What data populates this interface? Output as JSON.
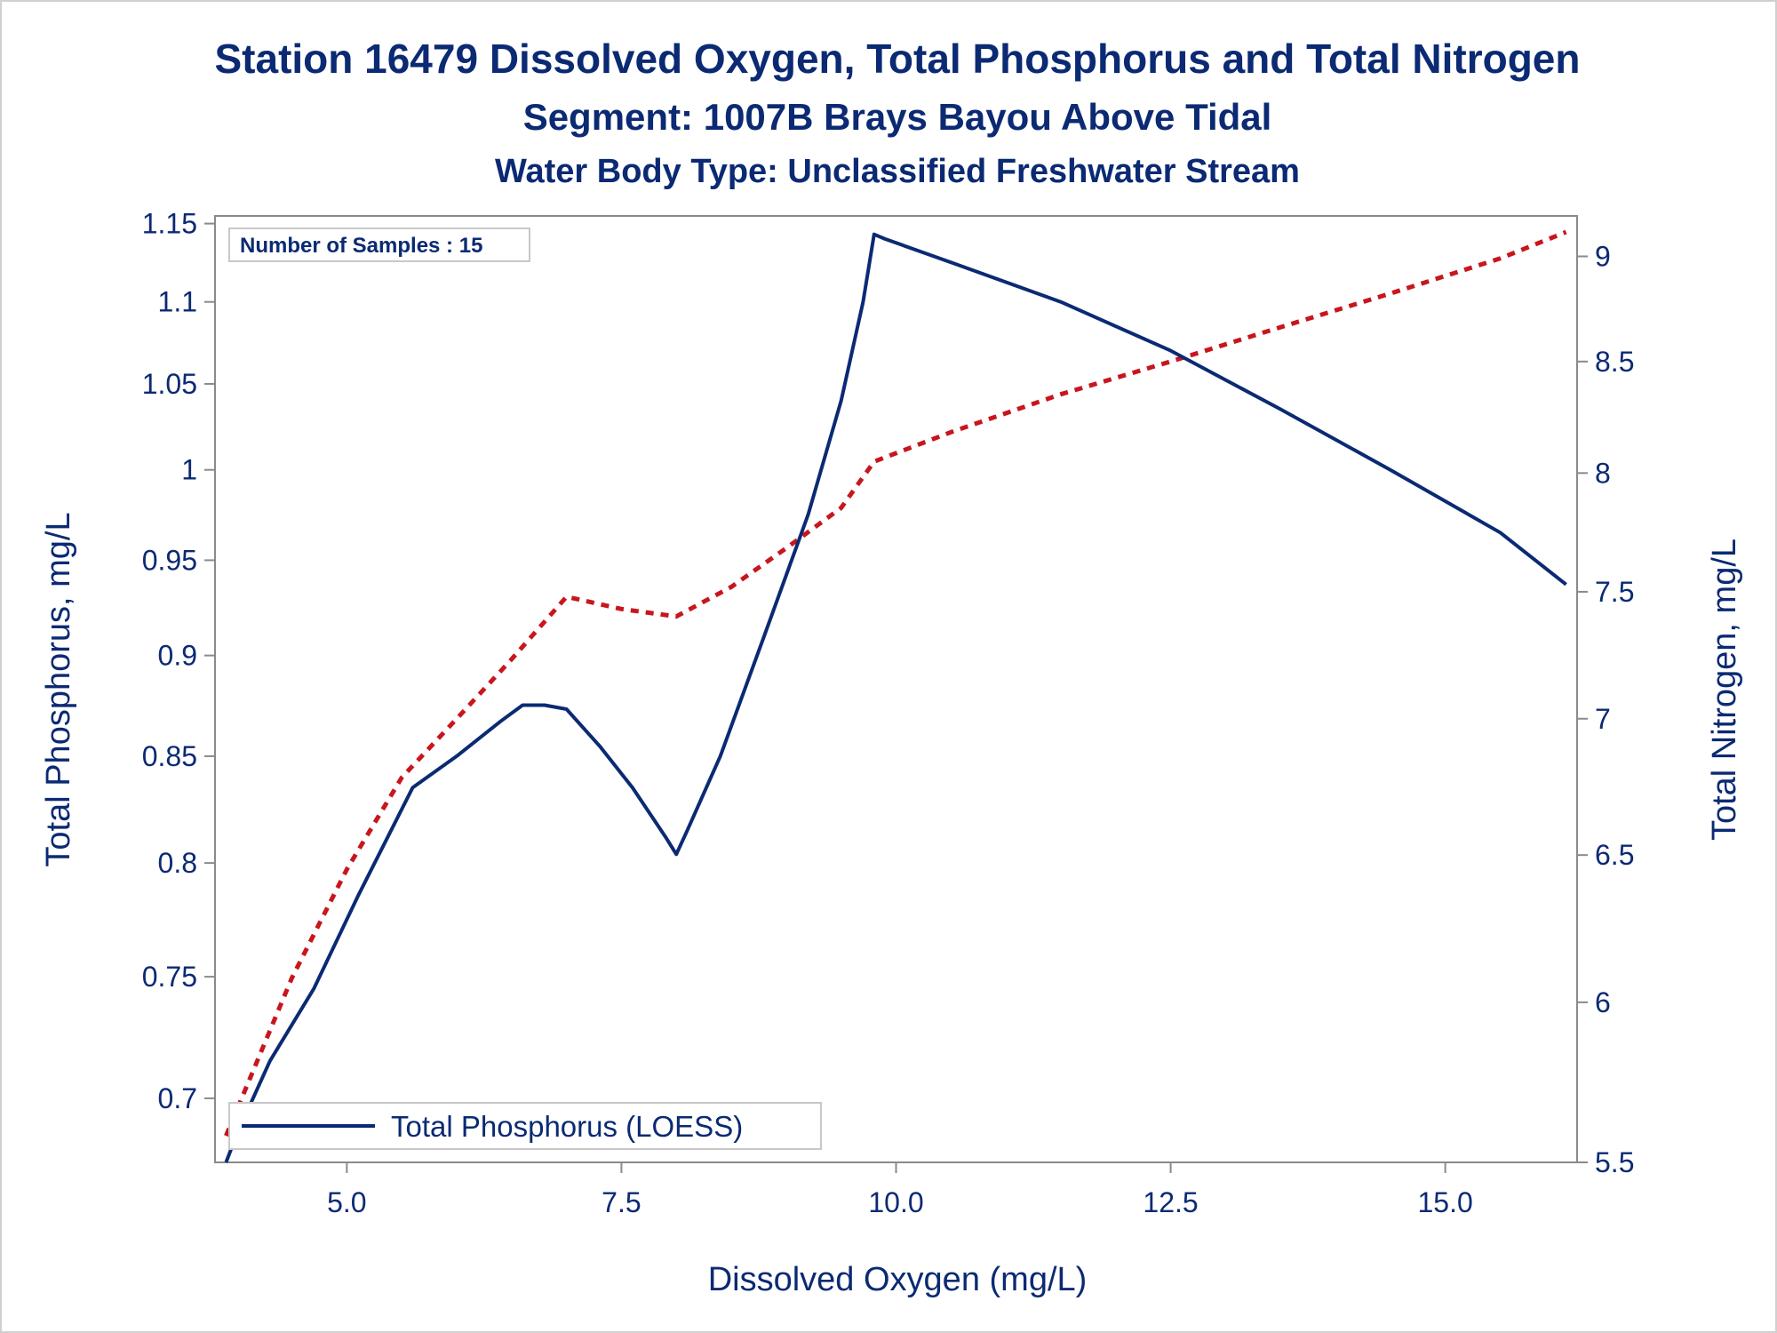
{
  "chart_data": {
    "type": "line",
    "title": "Station 16479  Dissolved Oxygen, Total Phosphorus and Total Nitrogen",
    "subtitle": "Segment: 1007B  Brays Bayou Above Tidal",
    "subtitle2": "Water Body Type: Unclassified Freshwater Stream",
    "xlabel": "Dissolved Oxygen (mg/L)",
    "ylabel_left": "Total Phosphorus, mg/L",
    "ylabel_right": "Total Nitrogen, mg/L",
    "annotation": "Number of Samples : 15",
    "xlim": [
      3.8,
      16.2
    ],
    "ylim_left": [
      0.675,
      1.155
    ],
    "ylim_right": [
      5.5,
      9.2
    ],
    "y_scale": "log",
    "x_ticks": [
      "5.0",
      "7.5",
      "10.0",
      "12.5",
      "15.0"
    ],
    "x_tick_values": [
      5.0,
      7.5,
      10.0,
      12.5,
      15.0
    ],
    "y_left_ticks": [
      "0.7",
      "0.75",
      "0.8",
      "0.85",
      "0.9",
      "0.95",
      "1",
      "1.05",
      "1.1",
      "1.15"
    ],
    "y_left_tick_values": [
      0.7,
      0.75,
      0.8,
      0.85,
      0.9,
      0.95,
      1.0,
      1.05,
      1.1,
      1.15
    ],
    "y_right_ticks": [
      "5.5",
      "6",
      "6.5",
      "7",
      "7.5",
      "8",
      "8.5",
      "9"
    ],
    "y_right_tick_values": [
      5.5,
      6,
      6.5,
      7,
      7.5,
      8,
      8.5,
      9
    ],
    "legend_position": "bottom-left",
    "grid": false,
    "series": [
      {
        "name": "Total Phosphorus (LOESS)",
        "axis": "left",
        "color": "#0b2a73",
        "style": "solid",
        "x": [
          3.9,
          4.0,
          4.3,
          4.7,
          5.1,
          5.6,
          6.0,
          6.4,
          6.6,
          6.8,
          7.0,
          7.3,
          7.6,
          7.9,
          8.0,
          8.1,
          8.4,
          8.8,
          9.2,
          9.5,
          9.7,
          9.8,
          9.9,
          10.5,
          11.5,
          12.5,
          13.5,
          14.5,
          15.5,
          16.1
        ],
        "y": [
          0.675,
          0.686,
          0.715,
          0.745,
          0.785,
          0.835,
          0.85,
          0.867,
          0.875,
          0.875,
          0.873,
          0.855,
          0.835,
          0.812,
          0.804,
          0.815,
          0.85,
          0.91,
          0.975,
          1.04,
          1.1,
          1.143,
          1.14,
          1.125,
          1.1,
          1.07,
          1.035,
          1.0,
          0.965,
          0.937
        ]
      },
      {
        "name": "Total Nitrogen",
        "axis": "right",
        "color": "#c8161d",
        "style": "dotted",
        "x": [
          3.9,
          4.5,
          5.0,
          5.5,
          6.0,
          6.5,
          7.0,
          7.5,
          8.0,
          8.5,
          9.0,
          9.5,
          9.8,
          10.5,
          11.5,
          12.5,
          13.5,
          14.5,
          15.5,
          16.1
        ],
        "y": [
          5.58,
          6.08,
          6.45,
          6.78,
          7.0,
          7.23,
          7.48,
          7.43,
          7.4,
          7.52,
          7.68,
          7.85,
          8.05,
          8.18,
          8.35,
          8.5,
          8.66,
          8.82,
          8.99,
          9.12
        ]
      }
    ]
  }
}
